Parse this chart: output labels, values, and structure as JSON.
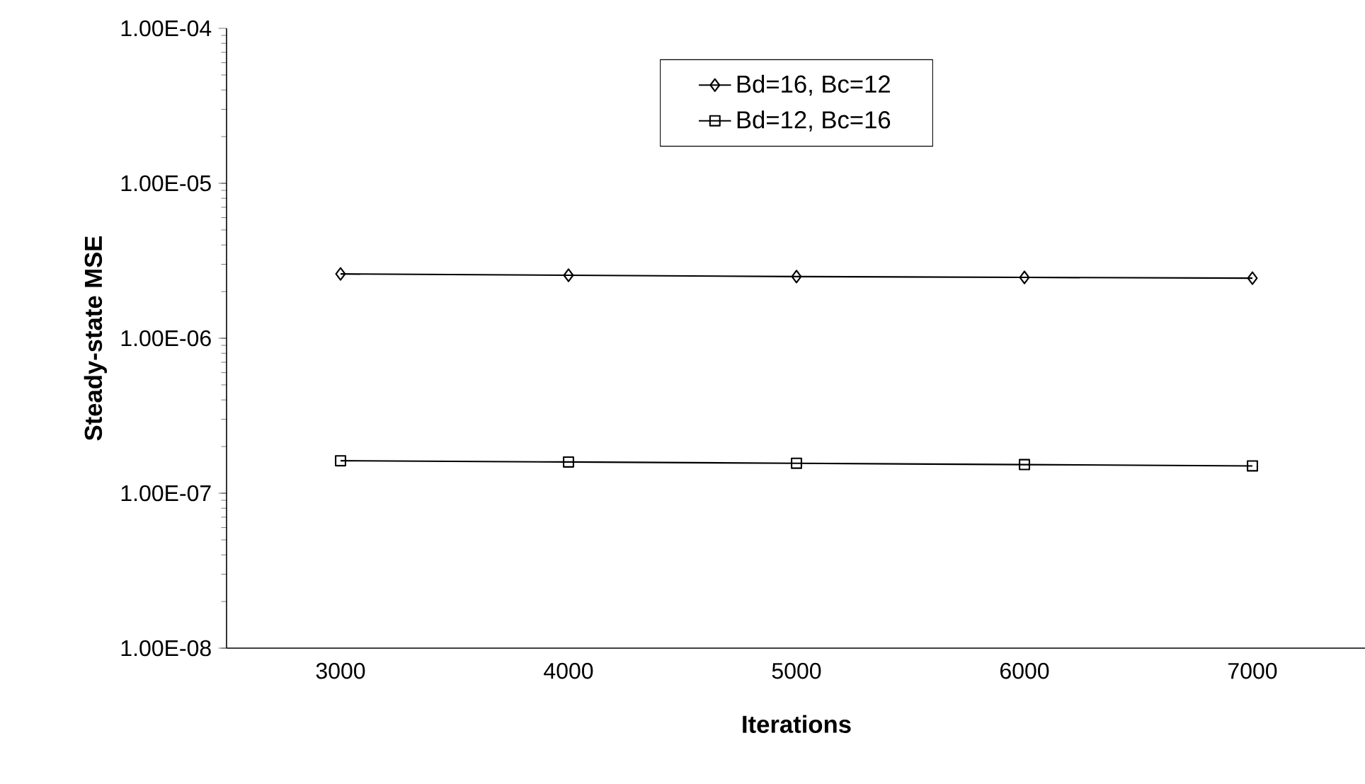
{
  "chart_data": {
    "type": "line",
    "xlabel": "Iterations",
    "ylabel": "Steady-state MSE",
    "categories": [
      "3000",
      "4000",
      "5000",
      "6000",
      "7000"
    ],
    "log": "y",
    "ylim": [
      1e-08,
      0.0001
    ],
    "yticks": [
      {
        "value": 1e-08,
        "label": "1.00E-08"
      },
      {
        "value": 1e-07,
        "label": "1.00E-07"
      },
      {
        "value": 1e-06,
        "label": "1.00E-06"
      },
      {
        "value": 1e-05,
        "label": "1.00E-05"
      },
      {
        "value": 0.0001,
        "label": "1.00E-04"
      }
    ],
    "legend": "top",
    "grid": false,
    "series": [
      {
        "name": "Bd=16, Bc=12",
        "color": "#000000",
        "marker": "diamond",
        "values": [
          2.6e-06,
          2.55e-06,
          2.5e-06,
          2.47e-06,
          2.44e-06
        ]
      },
      {
        "name": "Bd=12, Bc=16",
        "color": "#000000",
        "marker": "square",
        "values": [
          1.62e-07,
          1.59e-07,
          1.56e-07,
          1.53e-07,
          1.5e-07
        ]
      }
    ]
  }
}
